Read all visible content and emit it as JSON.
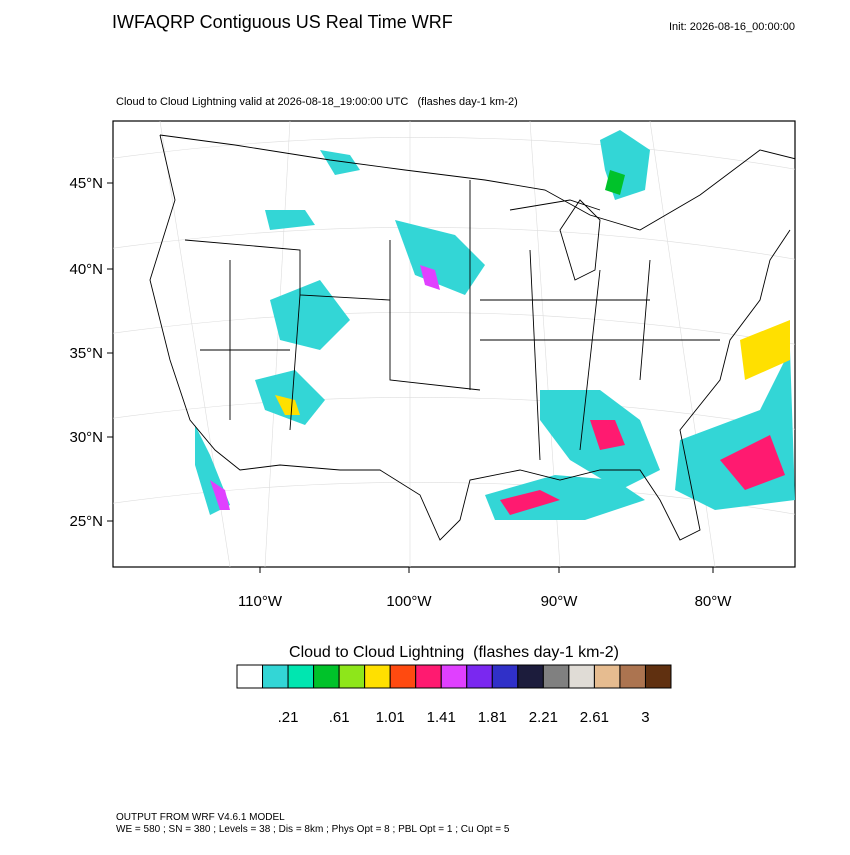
{
  "header": {
    "title": "IWFAQRP Contiguous US Real Time WRF",
    "init": "Init: 2026-08-16_00:00:00",
    "subtitle": "Cloud to Cloud Lightning valid at 2026-08-18_19:00:00 UTC   (flashes day-1 km-2)"
  },
  "map": {
    "lat_labels": [
      "45°N",
      "40°N",
      "35°N",
      "30°N",
      "25°N"
    ],
    "lon_labels": [
      "110°W",
      "100°W",
      "90°W",
      "80°W"
    ]
  },
  "colorbar": {
    "title": "Cloud to Cloud Lightning  (flashes day-1 km-2)",
    "colors": [
      "#ffffff",
      "#33d6d6",
      "#00e6b0",
      "#00c22a",
      "#8ee61a",
      "#ffe000",
      "#ff4a10",
      "#ff1a70",
      "#e040ff",
      "#7a28f0",
      "#3030c8",
      "#1c1c3c",
      "#808080",
      "#e0dcd6",
      "#e6bc90",
      "#ac7450",
      "#603010"
    ],
    "labels": [
      ".21",
      ".61",
      "1.01",
      "1.41",
      "1.81",
      "2.21",
      "2.61",
      "3"
    ]
  },
  "footer": {
    "line1": "OUTPUT FROM WRF V4.6.1 MODEL",
    "line2": "WE = 580 ; SN = 380 ; Levels = 38 ; Dis = 8km ; Phys Opt = 8 ; PBL Opt = 1 ; Cu Opt = 5"
  }
}
